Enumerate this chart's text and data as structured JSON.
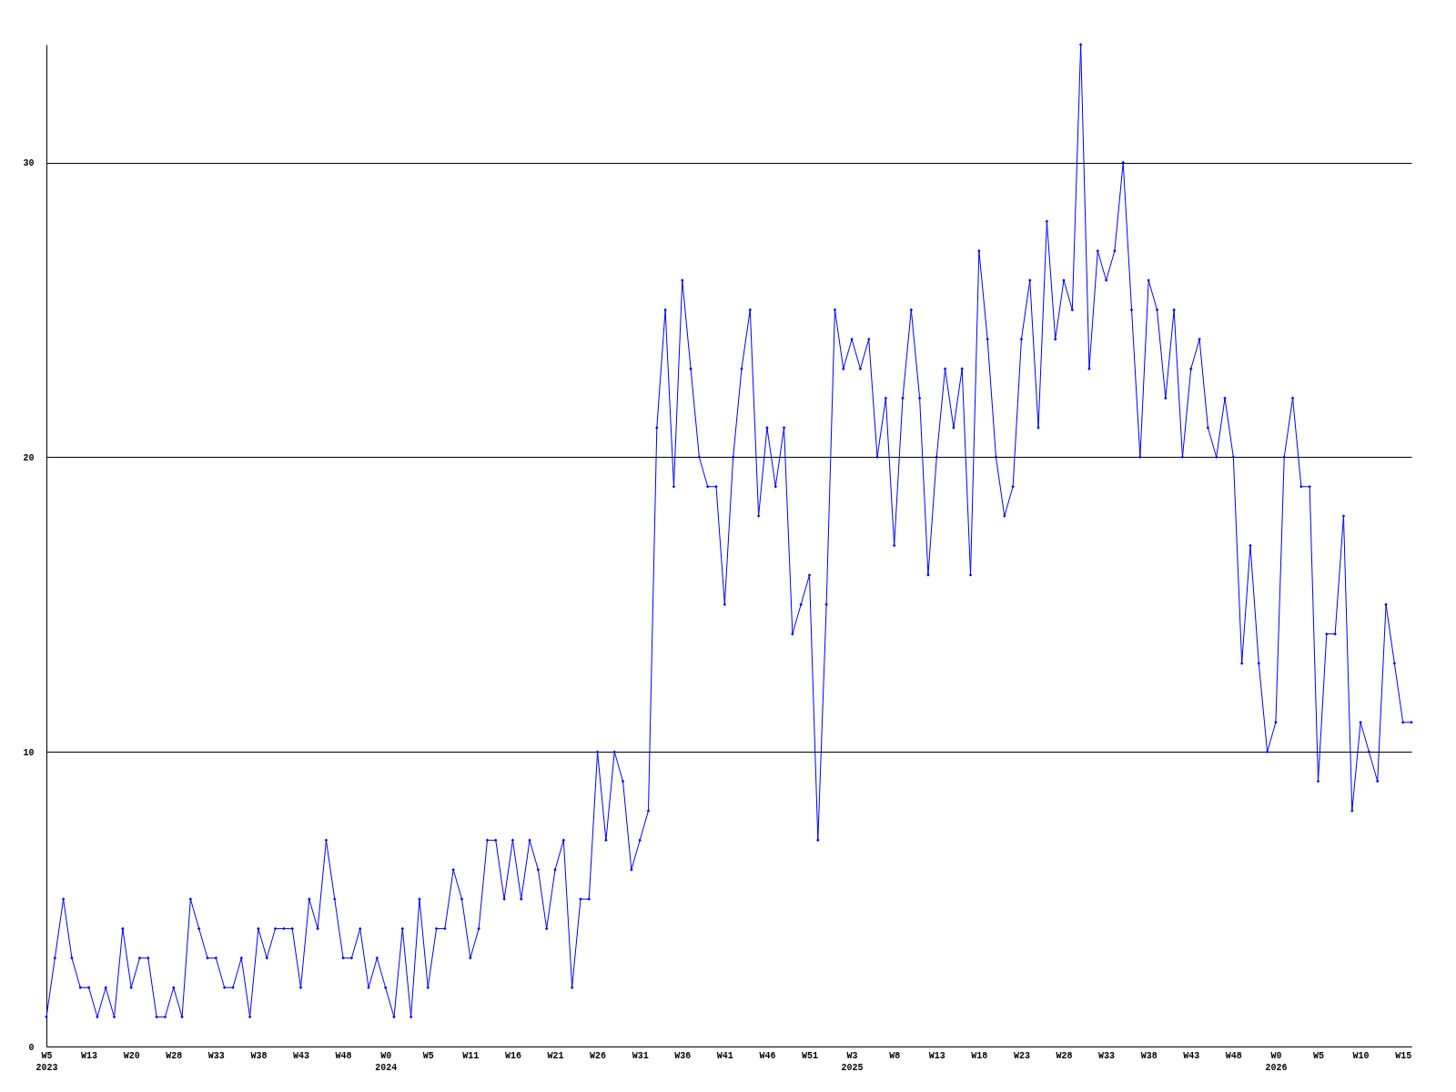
{
  "chart_data": {
    "type": "line",
    "categories": [
      "W5\n2023",
      null,
      null,
      null,
      null,
      "W13",
      null,
      null,
      null,
      null,
      "W20",
      null,
      null,
      null,
      null,
      "W28",
      null,
      null,
      null,
      null,
      "W33",
      null,
      null,
      null,
      null,
      "W38",
      null,
      null,
      null,
      null,
      "W43",
      null,
      null,
      null,
      null,
      "W48",
      null,
      null,
      null,
      null,
      "W0\n2024",
      null,
      null,
      null,
      null,
      "W5",
      null,
      null,
      null,
      null,
      "W11",
      null,
      null,
      null,
      null,
      "W16",
      null,
      null,
      null,
      null,
      "W21",
      null,
      null,
      null,
      null,
      "W26",
      null,
      null,
      null,
      null,
      "W31",
      null,
      null,
      null,
      null,
      "W36",
      null,
      null,
      null,
      null,
      "W41",
      null,
      null,
      null,
      null,
      "W46",
      null,
      null,
      null,
      null,
      "W51",
      null,
      null,
      null,
      null,
      "W3\n2025",
      null,
      null,
      null,
      null,
      "W8",
      null,
      null,
      null,
      null,
      "W13",
      null,
      null,
      null,
      null,
      "W18",
      null,
      null,
      null,
      null,
      "W23",
      null,
      null,
      null,
      null,
      "W28",
      null,
      null,
      null,
      null,
      "W33",
      null,
      null,
      null,
      null,
      "W38",
      null,
      null,
      null,
      null,
      "W43",
      null,
      null,
      null,
      null,
      "W48",
      null,
      null,
      null,
      null,
      "W0\n2026",
      null,
      null,
      null,
      null,
      "W5",
      null,
      null,
      null,
      null,
      "W10",
      null,
      null,
      null,
      null,
      "W15",
      null
    ],
    "series": [
      {
        "color": "#0000ff",
        "values": [
          1,
          3,
          5,
          3,
          2,
          2,
          1,
          2,
          1,
          4,
          2,
          3,
          3,
          1,
          1,
          2,
          1,
          5,
          4,
          3,
          3,
          2,
          2,
          3,
          1,
          4,
          3,
          4,
          4,
          4,
          2,
          5,
          4,
          7,
          5,
          3,
          3,
          4,
          2,
          3,
          2,
          1,
          4,
          1,
          5,
          2,
          4,
          4,
          6,
          5,
          3,
          4,
          7,
          7,
          5,
          7,
          5,
          7,
          6,
          4,
          6,
          7,
          2,
          5,
          5,
          10,
          7,
          10,
          9,
          6,
          7,
          8,
          21,
          25,
          19,
          26,
          23,
          20,
          19,
          19,
          15,
          20,
          23,
          25,
          18,
          21,
          19,
          21,
          14,
          15,
          16,
          7,
          15,
          25,
          23,
          24,
          23,
          24,
          20,
          22,
          17,
          22,
          25,
          22,
          16,
          20,
          23,
          21,
          23,
          16,
          27,
          24,
          20,
          18,
          19,
          24,
          26,
          21,
          28,
          24,
          26,
          25,
          34,
          23,
          27,
          26,
          27,
          30,
          25,
          20,
          26,
          25,
          22,
          25,
          20,
          23,
          24,
          21,
          20,
          22,
          20,
          13,
          17,
          13,
          10,
          11,
          20,
          22,
          19,
          19,
          9,
          14,
          14,
          18,
          8,
          11,
          10,
          9,
          15,
          13,
          11,
          11
        ]
      }
    ],
    "ylim": [
      0,
      34
    ],
    "yticks": [
      0,
      10,
      20,
      30
    ],
    "grid": "y",
    "marker": "diamond",
    "line_style": "solid"
  }
}
